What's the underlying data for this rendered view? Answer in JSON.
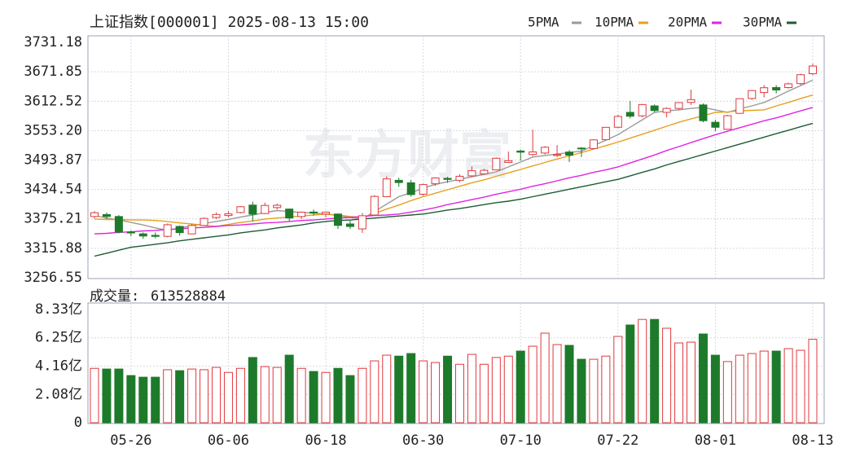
{
  "chart_data": [
    {
      "type": "candlestick",
      "title": "上证指数[000001] 2025-08-13 15:00",
      "watermark": "东方财富",
      "up_color": "#e0393e",
      "down_color": "#1e7a2b",
      "ylim": [
        3256.55,
        3731.18
      ],
      "yticks": [
        3731.18,
        3671.85,
        3612.52,
        {
          "value": 3553.2,
          "label": "3553.20"
        },
        3493.87,
        3434.54,
        3375.21,
        3315.88,
        3256.55
      ],
      "grid": true,
      "ohlc": [
        [
          3380,
          3391,
          3376,
          3387.57
        ],
        [
          3384,
          3388,
          3375,
          3380.19
        ],
        [
          3380,
          3383,
          3346,
          3348.37
        ],
        [
          3349,
          3352,
          3340,
          3346.84
        ],
        [
          3345,
          3348,
          3335,
          3340.69
        ],
        [
          3342,
          3348,
          3336,
          3339.93
        ],
        [
          3340,
          3366,
          3338,
          3363.45
        ],
        [
          3360,
          3362,
          3341,
          3347.49
        ],
        [
          3345,
          3365,
          3344,
          3361.98
        ],
        [
          3362,
          3378,
          3361,
          3376.2
        ],
        [
          3378,
          3388,
          3375,
          3384.1
        ],
        [
          3382,
          3391,
          3378,
          3385.36
        ],
        [
          3388,
          3401,
          3386,
          3399.77
        ],
        [
          3403,
          3410,
          3370,
          3384.82
        ],
        [
          3386,
          3408,
          3385,
          3402.32
        ],
        [
          3398,
          3406,
          3394,
          3402.66
        ],
        [
          3395,
          3396,
          3370,
          3377
        ],
        [
          3380,
          3390,
          3375,
          3388.73
        ],
        [
          3389,
          3394,
          3382,
          3386.99
        ],
        [
          3385,
          3390,
          3378,
          3388.81
        ],
        [
          3385,
          3386,
          3355,
          3362.11
        ],
        [
          3365,
          3372,
          3355,
          3359.9
        ],
        [
          3355,
          3387,
          3347,
          3381.58
        ],
        [
          3383,
          3423,
          3383,
          3420.57
        ],
        [
          3420,
          3461,
          3420,
          3455.97
        ],
        [
          3453,
          3458,
          3440,
          3448.45
        ],
        [
          3448,
          3454,
          3420,
          3424.23
        ],
        [
          3425,
          3446,
          3422,
          3444.43
        ],
        [
          3446,
          3459,
          3442,
          3457.75
        ],
        [
          3457,
          3460,
          3448,
          3454.79
        ],
        [
          3453,
          3465,
          3449,
          3461.15
        ],
        [
          3462,
          3481,
          3460,
          3472.32
        ],
        [
          3466,
          3476,
          3465,
          3473.13
        ],
        [
          3474,
          3499,
          3473,
          3497.48
        ],
        [
          3489,
          3511,
          3488,
          3492.52
        ],
        [
          3512,
          3515,
          3493,
          3509.68
        ],
        [
          3505,
          3555,
          3502,
          3510.18
        ],
        [
          3508,
          3522,
          3505,
          3519.65
        ],
        [
          3503,
          3524,
          3500,
          3505
        ],
        [
          3510,
          3514,
          3490,
          3503.78
        ],
        [
          3518,
          3520,
          3500,
          3516.83
        ],
        [
          3517,
          3536,
          3515,
          3534.48
        ],
        [
          3535,
          3560,
          3534,
          3559.79
        ],
        [
          3560,
          3585,
          3558,
          3581.86
        ],
        [
          3590,
          3613,
          3578,
          3582.3
        ],
        [
          3583,
          3607,
          3580,
          3605.73
        ],
        [
          3603,
          3606,
          3590,
          3593.66
        ],
        [
          3590,
          3600,
          3580,
          3597.94
        ],
        [
          3598,
          3610,
          3595,
          3609.71
        ],
        [
          3610,
          3636,
          3605,
          3615.72
        ],
        [
          3605,
          3608,
          3570,
          3573.21
        ],
        [
          3570,
          3575,
          3552,
          3559.95
        ],
        [
          3556,
          3585,
          3555,
          3583.31
        ],
        [
          3588,
          3618,
          3587,
          3617.6
        ],
        [
          3618,
          3634,
          3615,
          3633.99
        ],
        [
          3630,
          3645,
          3620,
          3639.67
        ],
        [
          3640,
          3645,
          3628,
          3635.13
        ],
        [
          3640,
          3650,
          3638,
          3647.55
        ],
        [
          3648,
          3668,
          3645,
          3665.92
        ],
        [
          3668,
          3688,
          3665,
          3683.46
        ]
      ],
      "series": [
        {
          "name": "5PMA",
          "color": "#9a9a9a",
          "values": [
            3382,
            3377,
            3373,
            3368,
            3363,
            3357,
            3352,
            3357,
            3361,
            3366,
            3370,
            3374,
            3379,
            3383,
            3388,
            3392,
            3390,
            3388,
            3387,
            3385,
            3382,
            3378,
            3375,
            3390,
            3405,
            3420,
            3428,
            3437,
            3445,
            3450,
            3455,
            3460,
            3465,
            3470,
            3480,
            3490,
            3500,
            3503,
            3506,
            3509,
            3512,
            3523,
            3534,
            3545,
            3560,
            3575,
            3590,
            3593,
            3595,
            3598,
            3600,
            3595,
            3590,
            3597,
            3603,
            3610,
            3621,
            3633,
            3644,
            3655
          ]
        },
        {
          "name": "10PMA",
          "color": "#e6a11a",
          "values": [
            3375,
            3374,
            3374,
            3373,
            3373,
            3372,
            3370,
            3367,
            3365,
            3362,
            3360,
            3364,
            3368,
            3371,
            3375,
            3377,
            3379,
            3381,
            3383,
            3385,
            3383,
            3380,
            3378,
            3386,
            3395,
            3403,
            3412,
            3420,
            3427,
            3434,
            3441,
            3448,
            3454,
            3461,
            3468,
            3475,
            3482,
            3489,
            3496,
            3502,
            3509,
            3516,
            3523,
            3530,
            3538,
            3546,
            3554,
            3562,
            3570,
            3577,
            3583,
            3590,
            3591,
            3593,
            3594,
            3595,
            3603,
            3610,
            3618,
            3625
          ]
        },
        {
          "name": "20PMA",
          "color": "#e024e0",
          "values": [
            3345,
            3346,
            3348,
            3349,
            3351,
            3352,
            3354,
            3355,
            3357,
            3358,
            3360,
            3362,
            3363,
            3365,
            3367,
            3368,
            3370,
            3372,
            3373,
            3375,
            3377,
            3378,
            3380,
            3382,
            3383,
            3385,
            3389,
            3393,
            3398,
            3404,
            3409,
            3414,
            3419,
            3425,
            3430,
            3435,
            3441,
            3446,
            3452,
            3458,
            3463,
            3469,
            3474,
            3480,
            3488,
            3496,
            3504,
            3513,
            3521,
            3529,
            3537,
            3545,
            3552,
            3559,
            3566,
            3573,
            3579,
            3586,
            3593,
            3600
          ]
        },
        {
          "name": "30PMA",
          "color": "#1d5c36",
          "values": [
            3300,
            3306,
            3312,
            3318,
            3321,
            3324,
            3327,
            3331,
            3334,
            3337,
            3340,
            3343,
            3347,
            3350,
            3353,
            3357,
            3360,
            3363,
            3367,
            3370,
            3372,
            3373,
            3375,
            3377,
            3379,
            3381,
            3383,
            3385,
            3389,
            3393,
            3396,
            3400,
            3404,
            3408,
            3411,
            3415,
            3420,
            3425,
            3430,
            3435,
            3440,
            3445,
            3450,
            3455,
            3462,
            3469,
            3476,
            3484,
            3491,
            3498,
            3505,
            3512,
            3519,
            3526,
            3533,
            3540,
            3547,
            3554,
            3561,
            3568
          ]
        }
      ]
    },
    {
      "type": "bar",
      "title": "成交量:",
      "latest": 613528884,
      "ylim": [
        0,
        8.33
      ],
      "yticks": [
        {
          "value": 8.33,
          "label": "8.33亿"
        },
        {
          "value": 6.25,
          "label": "6.25亿"
        },
        {
          "value": 4.16,
          "label": "4.16亿"
        },
        {
          "value": 2.08,
          "label": "2.08亿"
        },
        0
      ],
      "categories": [
        null,
        null,
        null,
        "05-26",
        null,
        null,
        null,
        null,
        null,
        null,
        null,
        "06-06",
        null,
        null,
        null,
        null,
        null,
        null,
        null,
        "06-18",
        null,
        null,
        null,
        null,
        null,
        null,
        null,
        "06-30",
        null,
        null,
        null,
        null,
        null,
        null,
        null,
        "07-10",
        null,
        null,
        null,
        null,
        null,
        null,
        null,
        "07-22",
        null,
        null,
        null,
        null,
        null,
        null,
        null,
        "08-01",
        null,
        null,
        null,
        null,
        null,
        null,
        null,
        "08-13"
      ],
      "values": [
        4.0,
        3.95,
        3.95,
        3.47,
        3.35,
        3.35,
        3.9,
        3.83,
        3.95,
        3.9,
        4.07,
        3.7,
        4.0,
        4.8,
        4.13,
        4.07,
        4.97,
        4.0,
        3.77,
        3.7,
        4.0,
        3.47,
        4.0,
        4.55,
        4.97,
        4.9,
        5.09,
        4.55,
        4.43,
        4.9,
        4.3,
        5.03,
        4.3,
        4.8,
        4.9,
        5.27,
        5.63,
        6.59,
        5.75,
        5.69,
        4.67,
        4.67,
        4.9,
        6.35,
        7.19,
        7.6,
        7.6,
        6.95,
        5.87,
        5.93,
        6.53,
        4.97,
        4.5,
        4.97,
        5.09,
        5.27,
        5.27,
        5.45,
        5.33,
        6.14
      ]
    }
  ]
}
